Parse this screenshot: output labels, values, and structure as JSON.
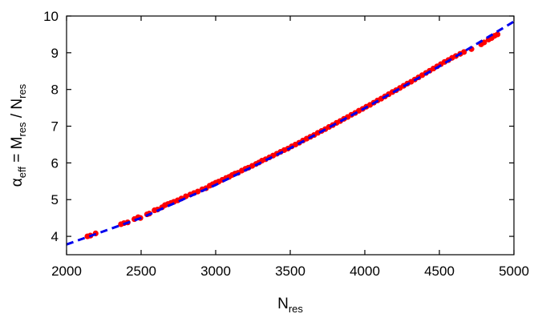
{
  "chart_data": {
    "type": "scatter",
    "xlabel": {
      "main": "N",
      "sub": "res"
    },
    "ylabel": {
      "parts": [
        {
          "text": "α",
          "sub": "eff"
        },
        {
          "text": " = M",
          "sub": "res"
        },
        {
          "text": " / N",
          "sub": "res"
        }
      ]
    },
    "xlim": [
      2000,
      5000
    ],
    "ylim": [
      3.5,
      10
    ],
    "x_ticks": [
      "2000",
      "2500",
      "3000",
      "3500",
      "4000",
      "4500",
      "5000"
    ],
    "y_ticks": [
      "4",
      "5",
      "6",
      "7",
      "8",
      "9",
      "10"
    ],
    "grid": false,
    "legend": "none",
    "series": [
      {
        "style": "markers",
        "color": "#ff0000",
        "points": [
          [
            2140,
            4.0
          ],
          [
            2160,
            4.02
          ],
          [
            2195,
            4.08
          ],
          [
            2365,
            4.33
          ],
          [
            2385,
            4.36
          ],
          [
            2410,
            4.38
          ],
          [
            2455,
            4.47
          ],
          [
            2480,
            4.52
          ],
          [
            2495,
            4.5
          ],
          [
            2540,
            4.6
          ],
          [
            2555,
            4.62
          ],
          [
            2590,
            4.71
          ],
          [
            2610,
            4.73
          ],
          [
            2640,
            4.79
          ],
          [
            2660,
            4.85
          ],
          [
            2680,
            4.88
          ],
          [
            2700,
            4.91
          ],
          [
            2720,
            4.94
          ],
          [
            2745,
            4.98
          ],
          [
            2770,
            5.03
          ],
          [
            2800,
            5.09
          ],
          [
            2830,
            5.14
          ],
          [
            2855,
            5.18
          ],
          [
            2880,
            5.22
          ],
          [
            2910,
            5.28
          ],
          [
            2935,
            5.31
          ],
          [
            2960,
            5.38
          ],
          [
            2980,
            5.42
          ],
          [
            3000,
            5.46
          ],
          [
            3020,
            5.49
          ],
          [
            3045,
            5.54
          ],
          [
            3070,
            5.59
          ],
          [
            3090,
            5.62
          ],
          [
            3110,
            5.67
          ],
          [
            3130,
            5.71
          ],
          [
            3150,
            5.73
          ],
          [
            3175,
            5.79
          ],
          [
            3200,
            5.84
          ],
          [
            3220,
            5.87
          ],
          [
            3245,
            5.92
          ],
          [
            3270,
            5.97
          ],
          [
            3290,
            6.01
          ],
          [
            3310,
            6.06
          ],
          [
            3335,
            6.1
          ],
          [
            3360,
            6.15
          ],
          [
            3385,
            6.2
          ],
          [
            3410,
            6.25
          ],
          [
            3435,
            6.3
          ],
          [
            3460,
            6.35
          ],
          [
            3485,
            6.39
          ],
          [
            3510,
            6.45
          ],
          [
            3535,
            6.5
          ],
          [
            3560,
            6.55
          ],
          [
            3585,
            6.61
          ],
          [
            3610,
            6.66
          ],
          [
            3635,
            6.71
          ],
          [
            3660,
            6.76
          ],
          [
            3685,
            6.82
          ],
          [
            3710,
            6.87
          ],
          [
            3735,
            6.92
          ],
          [
            3760,
            6.98
          ],
          [
            3785,
            7.03
          ],
          [
            3810,
            7.09
          ],
          [
            3835,
            7.14
          ],
          [
            3860,
            7.2
          ],
          [
            3885,
            7.25
          ],
          [
            3910,
            7.31
          ],
          [
            3935,
            7.36
          ],
          [
            3960,
            7.42
          ],
          [
            3985,
            7.47
          ],
          [
            4010,
            7.53
          ],
          [
            4035,
            7.58
          ],
          [
            4060,
            7.64
          ],
          [
            4085,
            7.7
          ],
          [
            4110,
            7.75
          ],
          [
            4135,
            7.81
          ],
          [
            4160,
            7.87
          ],
          [
            4185,
            7.93
          ],
          [
            4210,
            7.98
          ],
          [
            4235,
            8.04
          ],
          [
            4260,
            8.1
          ],
          [
            4285,
            8.16
          ],
          [
            4310,
            8.21
          ],
          [
            4335,
            8.27
          ],
          [
            4360,
            8.33
          ],
          [
            4385,
            8.39
          ],
          [
            4410,
            8.45
          ],
          [
            4435,
            8.51
          ],
          [
            4460,
            8.57
          ],
          [
            4485,
            8.63
          ],
          [
            4510,
            8.69
          ],
          [
            4535,
            8.75
          ],
          [
            4560,
            8.8
          ],
          [
            4585,
            8.86
          ],
          [
            4610,
            8.91
          ],
          [
            4640,
            8.97
          ],
          [
            4665,
            9.02
          ],
          [
            4715,
            9.1
          ],
          [
            4780,
            9.23
          ],
          [
            4800,
            9.28
          ],
          [
            4830,
            9.36
          ],
          [
            4850,
            9.4
          ],
          [
            4870,
            9.46
          ],
          [
            4890,
            9.5
          ]
        ]
      },
      {
        "style": "dashed-line",
        "color": "#0000ee",
        "points": [
          [
            2000,
            3.78
          ],
          [
            2500,
            4.5
          ],
          [
            3000,
            5.4
          ],
          [
            3500,
            6.4
          ],
          [
            4000,
            7.49
          ],
          [
            4500,
            8.63
          ],
          [
            5000,
            9.85
          ]
        ]
      }
    ]
  }
}
